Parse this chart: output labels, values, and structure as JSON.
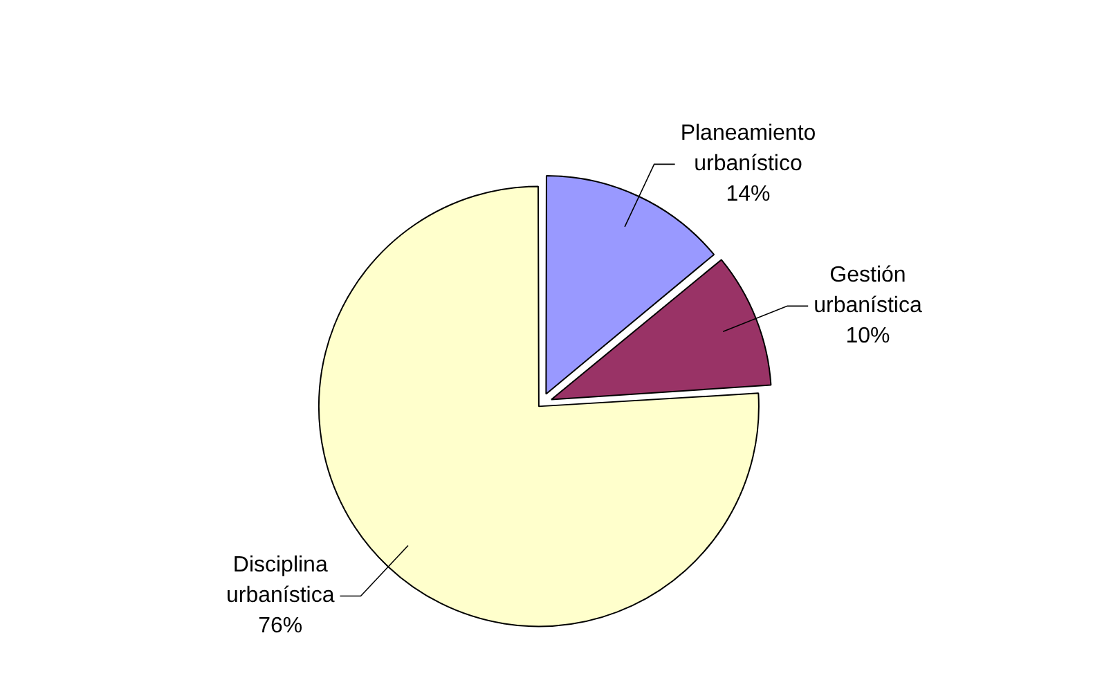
{
  "chart_data": {
    "type": "pie",
    "categories": [
      "Planeamiento urbanístico",
      "Gestión urbanística",
      "Disciplina urbanística"
    ],
    "values": [
      14,
      10,
      76
    ],
    "colors": [
      "#9999ff",
      "#993366",
      "#ffffcc"
    ],
    "value_labels": [
      "14%",
      "10%",
      "76%"
    ],
    "legend": false
  }
}
